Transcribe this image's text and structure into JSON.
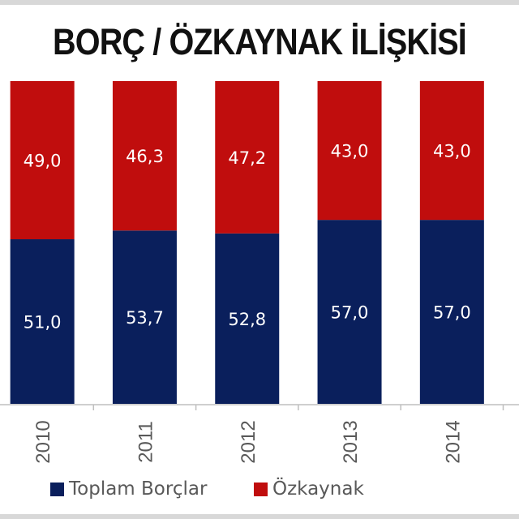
{
  "title": "BORÇ / ÖZKAYNAK İLİŞKİSİ",
  "chart_data": {
    "type": "bar",
    "stacked": true,
    "categories": [
      "2010",
      "2011",
      "2012",
      "2013",
      "2014"
    ],
    "series": [
      {
        "name": "Toplam Borçlar",
        "values": [
          51.0,
          53.7,
          52.8,
          57.0,
          57.0
        ],
        "labels": [
          "51,0",
          "53,7",
          "52,8",
          "57,0",
          "57,0"
        ],
        "color": "#0a1f5c"
      },
      {
        "name": "Özkaynak",
        "values": [
          49.0,
          46.3,
          47.2,
          43.0,
          43.0
        ],
        "labels": [
          "49,0",
          "46,3",
          "47,2",
          "43,0",
          "43,0"
        ],
        "color": "#c00d0d"
      }
    ],
    "ylim": [
      0,
      100
    ],
    "grid": false,
    "legend": "bottom"
  }
}
